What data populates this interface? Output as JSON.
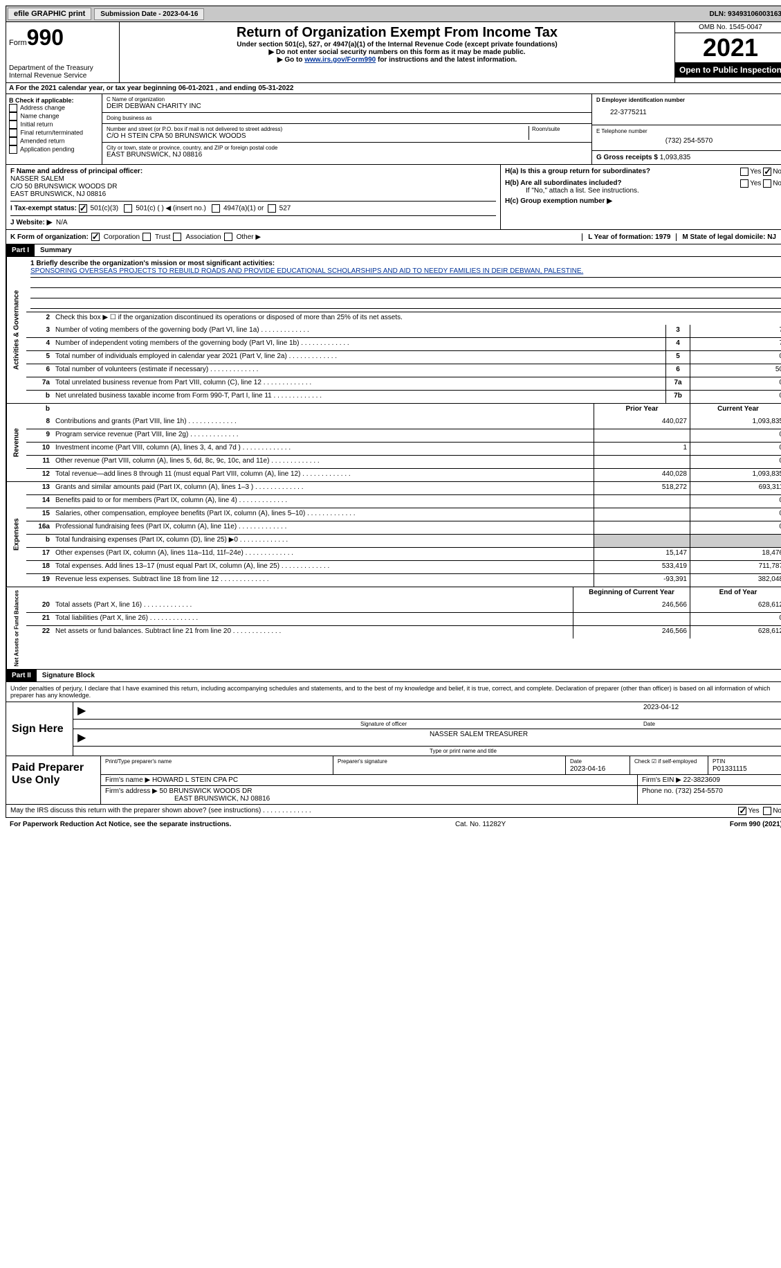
{
  "top": {
    "efile": "efile GRAPHIC print",
    "sub_date_label": "Submission Date - 2023-04-16",
    "dln": "DLN: 93493106003163"
  },
  "header": {
    "form_label": "Form",
    "form_num": "990",
    "dept": "Department of the Treasury\nInternal Revenue Service",
    "title": "Return of Organization Exempt From Income Tax",
    "sub1": "Under section 501(c), 527, or 4947(a)(1) of the Internal Revenue Code (except private foundations)",
    "sub2": "▶ Do not enter social security numbers on this form as it may be made public.",
    "sub3_pre": "▶ Go to ",
    "sub3_link": "www.irs.gov/Form990",
    "sub3_post": " for instructions and the latest information.",
    "omb": "OMB No. 1545-0047",
    "year": "2021",
    "open": "Open to Public Inspection"
  },
  "a": "A For the 2021 calendar year, or tax year beginning 06-01-2021   , and ending 05-31-2022",
  "b": {
    "title": "B Check if applicable:",
    "items": [
      "Address change",
      "Name change",
      "Initial return",
      "Final return/terminated",
      "Amended return",
      "Application pending"
    ]
  },
  "c": {
    "name_label": "C Name of organization",
    "name": "DEIR DEBWAN CHARITY INC",
    "dba_label": "Doing business as",
    "dba": "",
    "street_label": "Number and street (or P.O. box if mail is not delivered to street address)",
    "street": "C/O H STEIN CPA 50 BRUNSWICK WOODS",
    "room_label": "Room/suite",
    "city_label": "City or town, state or province, country, and ZIP or foreign postal code",
    "city": "EAST BRUNSWICK, NJ  08816"
  },
  "d": {
    "ein_label": "D Employer identification number",
    "ein": "22-3775211",
    "tel_label": "E Telephone number",
    "tel": "(732) 254-5570",
    "gross_label": "G Gross receipts $",
    "gross": "1,093,835"
  },
  "f": {
    "label": "F Name and address of principal officer:",
    "name": "NASSER SALEM",
    "addr1": "C/O 50 BRUNSWICK WOODS DR",
    "addr2": "EAST BRUNSWICK, NJ  08816"
  },
  "h": {
    "a": "H(a)  Is this a group return for subordinates?",
    "b": "H(b)  Are all subordinates included?",
    "b_note": "If \"No,\" attach a list. See instructions.",
    "c": "H(c)  Group exemption number ▶"
  },
  "i": {
    "label": "I   Tax-exempt status:",
    "opt1": "501(c)(3)",
    "opt2": "501(c) (  ) ◀ (insert no.)",
    "opt3": "4947(a)(1) or",
    "opt4": "527"
  },
  "j": {
    "label": "J   Website: ▶",
    "val": "N/A"
  },
  "k": {
    "label": "K Form of organization:",
    "opts": [
      "Corporation",
      "Trust",
      "Association",
      "Other ▶"
    ],
    "l": "L Year of formation: 1979",
    "m": "M State of legal domicile: NJ"
  },
  "part1": {
    "tag": "Part I",
    "title": "Summary"
  },
  "mission_label": "1  Briefly describe the organization's mission or most significant activities:",
  "mission": "SPONSORING OVERSEAS PROJECTS TO REBUILD ROADS AND PROVIDE EDUCATIONAL SCHOLARSHIPS AND AID TO NEEDY FAMILIES IN DEIR DEBWAN, PALESTINE.",
  "line2": "Check this box ▶ ☐ if the organization discontinued its operations or disposed of more than 25% of its net assets.",
  "gov_rows": [
    {
      "n": "3",
      "d": "Number of voting members of the governing body (Part VI, line 1a)",
      "box": "3",
      "v": "7"
    },
    {
      "n": "4",
      "d": "Number of independent voting members of the governing body (Part VI, line 1b)",
      "box": "4",
      "v": "7"
    },
    {
      "n": "5",
      "d": "Total number of individuals employed in calendar year 2021 (Part V, line 2a)",
      "box": "5",
      "v": "0"
    },
    {
      "n": "6",
      "d": "Total number of volunteers (estimate if necessary)",
      "box": "6",
      "v": "50"
    },
    {
      "n": "7a",
      "d": "Total unrelated business revenue from Part VIII, column (C), line 12",
      "box": "7a",
      "v": "0"
    },
    {
      "n": "b",
      "d": "Net unrelated business taxable income from Form 990-T, Part I, line 11",
      "box": "7b",
      "v": "0"
    }
  ],
  "rev_header": {
    "py": "Prior Year",
    "cy": "Current Year"
  },
  "rev_rows": [
    {
      "n": "8",
      "d": "Contributions and grants (Part VIII, line 1h)",
      "py": "440,027",
      "cy": "1,093,835"
    },
    {
      "n": "9",
      "d": "Program service revenue (Part VIII, line 2g)",
      "py": "",
      "cy": "0"
    },
    {
      "n": "10",
      "d": "Investment income (Part VIII, column (A), lines 3, 4, and 7d )",
      "py": "1",
      "cy": "0"
    },
    {
      "n": "11",
      "d": "Other revenue (Part VIII, column (A), lines 5, 6d, 8c, 9c, 10c, and 11e)",
      "py": "",
      "cy": "0"
    },
    {
      "n": "12",
      "d": "Total revenue—add lines 8 through 11 (must equal Part VIII, column (A), line 12)",
      "py": "440,028",
      "cy": "1,093,835"
    }
  ],
  "exp_rows": [
    {
      "n": "13",
      "d": "Grants and similar amounts paid (Part IX, column (A), lines 1–3 )",
      "py": "518,272",
      "cy": "693,311"
    },
    {
      "n": "14",
      "d": "Benefits paid to or for members (Part IX, column (A), line 4)",
      "py": "",
      "cy": "0"
    },
    {
      "n": "15",
      "d": "Salaries, other compensation, employee benefits (Part IX, column (A), lines 5–10)",
      "py": "",
      "cy": "0"
    },
    {
      "n": "16a",
      "d": "Professional fundraising fees (Part IX, column (A), line 11e)",
      "py": "",
      "cy": "0"
    },
    {
      "n": "b",
      "d": "Total fundraising expenses (Part IX, column (D), line 25) ▶0",
      "py": "shade",
      "cy": "shade"
    },
    {
      "n": "17",
      "d": "Other expenses (Part IX, column (A), lines 11a–11d, 11f–24e)",
      "py": "15,147",
      "cy": "18,476"
    },
    {
      "n": "18",
      "d": "Total expenses. Add lines 13–17 (must equal Part IX, column (A), line 25)",
      "py": "533,419",
      "cy": "711,787"
    },
    {
      "n": "19",
      "d": "Revenue less expenses. Subtract line 18 from line 12",
      "py": "-93,391",
      "cy": "382,048"
    }
  ],
  "net_header": {
    "py": "Beginning of Current Year",
    "cy": "End of Year"
  },
  "net_rows": [
    {
      "n": "20",
      "d": "Total assets (Part X, line 16)",
      "py": "246,566",
      "cy": "628,612"
    },
    {
      "n": "21",
      "d": "Total liabilities (Part X, line 26)",
      "py": "",
      "cy": "0"
    },
    {
      "n": "22",
      "d": "Net assets or fund balances. Subtract line 21 from line 20",
      "py": "246,566",
      "cy": "628,612"
    }
  ],
  "part2": {
    "tag": "Part II",
    "title": "Signature Block"
  },
  "sig": {
    "decl": "Under penalties of perjury, I declare that I have examined this return, including accompanying schedules and statements, and to the best of my knowledge and belief, it is true, correct, and complete. Declaration of preparer (other than officer) is based on all information of which preparer has any knowledge.",
    "sign_here": "Sign Here",
    "date": "2023-04-12",
    "sig_label": "Signature of officer",
    "date_label": "Date",
    "name": "NASSER SALEM  TREASURER",
    "name_label": "Type or print name and title"
  },
  "paid": {
    "title": "Paid Preparer Use Only",
    "h1": "Print/Type preparer's name",
    "h2": "Preparer's signature",
    "h3_label": "Date",
    "h3": "2023-04-16",
    "h4": "Check ☑ if self-employed",
    "h5_label": "PTIN",
    "h5": "P01331115",
    "firm_label": "Firm's name    ▶",
    "firm": "HOWARD L STEIN CPA PC",
    "ein_label": "Firm's EIN ▶",
    "ein": "22-3823609",
    "addr_label": "Firm's address ▶",
    "addr1": "50 BRUNSWICK WOODS DR",
    "addr2": "EAST BRUNSWICK, NJ  08816",
    "phone_label": "Phone no.",
    "phone": "(732) 254-5570"
  },
  "discuss": "May the IRS discuss this return with the preparer shown above? (see instructions)",
  "footer": {
    "pra": "For Paperwork Reduction Act Notice, see the separate instructions.",
    "cat": "Cat. No. 11282Y",
    "form": "Form 990 (2021)"
  }
}
